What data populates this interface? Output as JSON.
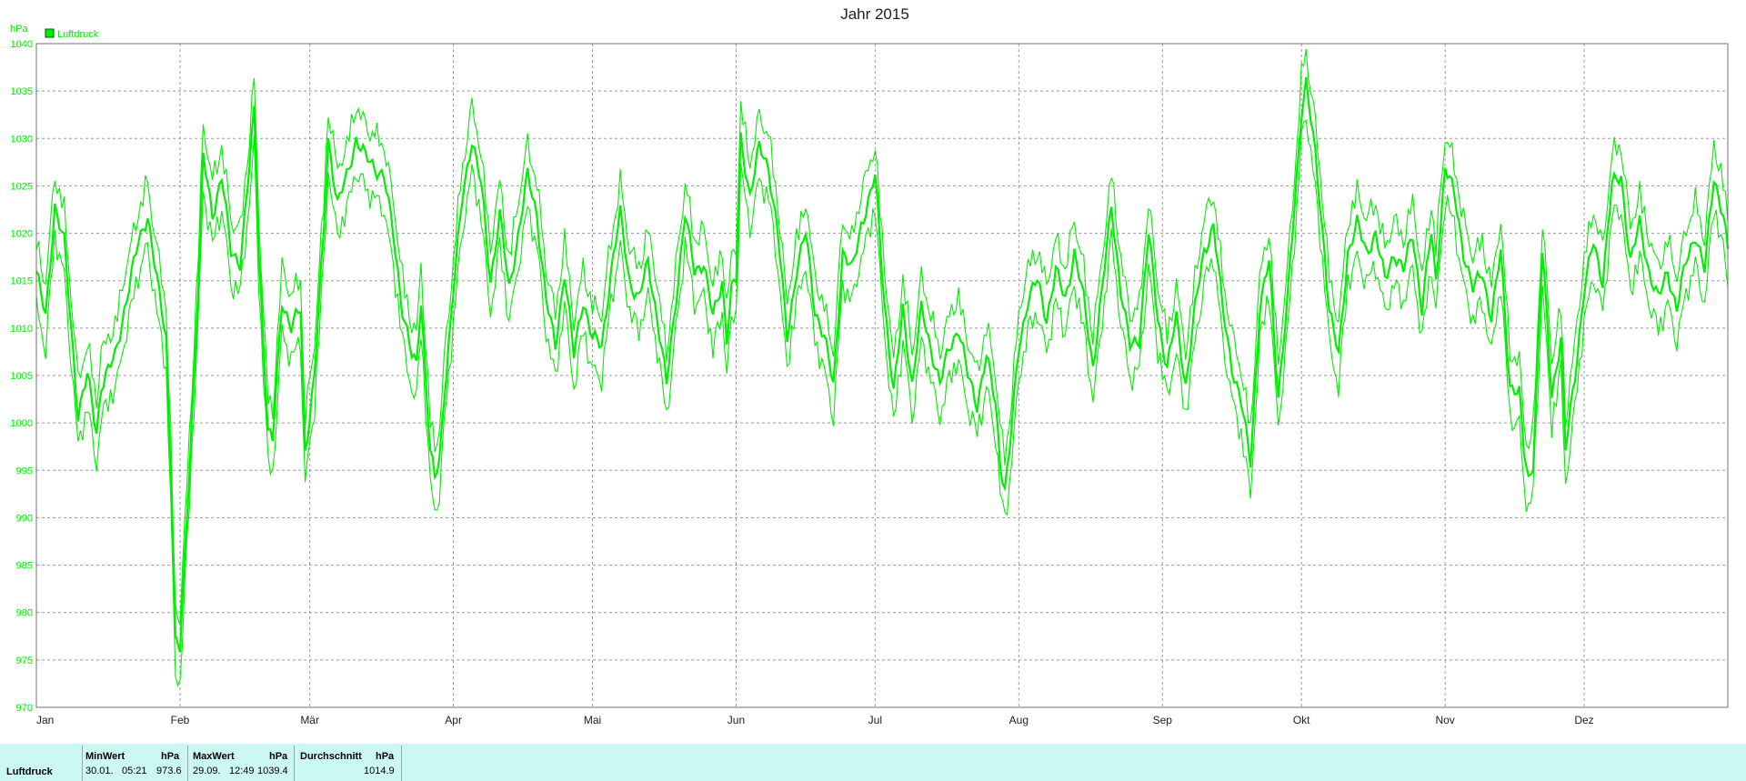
{
  "chart_data": {
    "type": "line",
    "title": "Jahr 2015",
    "y_unit": "hPa",
    "ylim": [
      970,
      1040
    ],
    "y_ticks": [
      970,
      975,
      980,
      985,
      990,
      995,
      1000,
      1005,
      1010,
      1015,
      1020,
      1025,
      1030,
      1035,
      1040
    ],
    "xlim": [
      0,
      365
    ],
    "x_ticks": [
      {
        "label": "Jan",
        "day": 0
      },
      {
        "label": "Feb",
        "day": 31
      },
      {
        "label": "Mär",
        "day": 59
      },
      {
        "label": "Apr",
        "day": 90
      },
      {
        "label": "Mai",
        "day": 120
      },
      {
        "label": "Jun",
        "day": 151
      },
      {
        "label": "Jul",
        "day": 181
      },
      {
        "label": "Aug",
        "day": 212
      },
      {
        "label": "Sep",
        "day": 243
      },
      {
        "label": "Okt",
        "day": 273
      },
      {
        "label": "Nov",
        "day": 304
      },
      {
        "label": "Dez",
        "day": 334
      }
    ],
    "grid": true,
    "legend": "top-left",
    "legend_label": "Luftdruck",
    "color": "#00ee00",
    "series": [
      {
        "name": "Luftdruck",
        "keypoints": [
          [
            0,
            1016
          ],
          [
            2,
            1011
          ],
          [
            4,
            1023
          ],
          [
            6,
            1019
          ],
          [
            9,
            1001
          ],
          [
            11,
            1005
          ],
          [
            13,
            999
          ],
          [
            14,
            1004
          ],
          [
            17,
            1007
          ],
          [
            19,
            1012
          ],
          [
            22,
            1019
          ],
          [
            24,
            1022
          ],
          [
            26,
            1015
          ],
          [
            28,
            1009
          ],
          [
            29,
            995
          ],
          [
            30,
            977
          ],
          [
            31,
            976
          ],
          [
            33,
            995
          ],
          [
            35,
            1015
          ],
          [
            36,
            1028
          ],
          [
            38,
            1022
          ],
          [
            40,
            1026
          ],
          [
            42,
            1018
          ],
          [
            44,
            1017
          ],
          [
            46,
            1027
          ],
          [
            47,
            1033
          ],
          [
            48,
            1018
          ],
          [
            50,
            999
          ],
          [
            51,
            998
          ],
          [
            53,
            1013
          ],
          [
            55,
            1010
          ],
          [
            57,
            1012
          ],
          [
            58,
            997
          ],
          [
            60,
            1005
          ],
          [
            62,
            1020
          ],
          [
            63,
            1030
          ],
          [
            65,
            1023
          ],
          [
            67,
            1026
          ],
          [
            69,
            1030
          ],
          [
            71,
            1028
          ],
          [
            73,
            1027
          ],
          [
            75,
            1026
          ],
          [
            77,
            1020
          ],
          [
            79,
            1012
          ],
          [
            81,
            1007
          ],
          [
            82,
            1006
          ],
          [
            83,
            1013
          ],
          [
            85,
            997
          ],
          [
            86,
            994
          ],
          [
            87,
            996
          ],
          [
            88,
            1003
          ],
          [
            90,
            1014
          ],
          [
            92,
            1024
          ],
          [
            94,
            1030
          ],
          [
            96,
            1025
          ],
          [
            98,
            1015
          ],
          [
            100,
            1022
          ],
          [
            102,
            1014
          ],
          [
            104,
            1020
          ],
          [
            106,
            1026
          ],
          [
            108,
            1022
          ],
          [
            110,
            1013
          ],
          [
            112,
            1008
          ],
          [
            114,
            1016
          ],
          [
            116,
            1007
          ],
          [
            118,
            1013
          ],
          [
            120,
            1009
          ],
          [
            122,
            1008
          ],
          [
            124,
            1016
          ],
          [
            126,
            1022
          ],
          [
            128,
            1015
          ],
          [
            130,
            1013
          ],
          [
            132,
            1017
          ],
          [
            134,
            1011
          ],
          [
            136,
            1004
          ],
          [
            138,
            1013
          ],
          [
            140,
            1022
          ],
          [
            142,
            1016
          ],
          [
            144,
            1017
          ],
          [
            146,
            1011
          ],
          [
            148,
            1015
          ],
          [
            149,
            1009
          ],
          [
            150,
            1014
          ],
          [
            151,
            1015
          ],
          [
            152,
            1030
          ],
          [
            154,
            1024
          ],
          [
            156,
            1029
          ],
          [
            158,
            1027
          ],
          [
            160,
            1020
          ],
          [
            162,
            1009
          ],
          [
            164,
            1016
          ],
          [
            166,
            1020
          ],
          [
            168,
            1012
          ],
          [
            170,
            1009
          ],
          [
            172,
            1004
          ],
          [
            174,
            1018
          ],
          [
            176,
            1016
          ],
          [
            178,
            1021
          ],
          [
            180,
            1024
          ],
          [
            181,
            1026
          ],
          [
            183,
            1013
          ],
          [
            185,
            1003
          ],
          [
            187,
            1012
          ],
          [
            189,
            1004
          ],
          [
            191,
            1012
          ],
          [
            193,
            1008
          ],
          [
            195,
            1004
          ],
          [
            197,
            1008
          ],
          [
            199,
            1010
          ],
          [
            201,
            1005
          ],
          [
            203,
            1002
          ],
          [
            205,
            1007
          ],
          [
            207,
            1002
          ],
          [
            208,
            996
          ],
          [
            209,
            993
          ],
          [
            210,
            997
          ],
          [
            212,
            1008
          ],
          [
            214,
            1013
          ],
          [
            216,
            1015
          ],
          [
            218,
            1011
          ],
          [
            220,
            1016
          ],
          [
            222,
            1013
          ],
          [
            224,
            1018
          ],
          [
            226,
            1013
          ],
          [
            228,
            1006
          ],
          [
            230,
            1014
          ],
          [
            232,
            1023
          ],
          [
            234,
            1014
          ],
          [
            236,
            1008
          ],
          [
            238,
            1009
          ],
          [
            240,
            1020
          ],
          [
            242,
            1011
          ],
          [
            244,
            1006
          ],
          [
            246,
            1011
          ],
          [
            248,
            1004
          ],
          [
            250,
            1012
          ],
          [
            252,
            1018
          ],
          [
            254,
            1021
          ],
          [
            256,
            1012
          ],
          [
            258,
            1006
          ],
          [
            260,
            1002
          ],
          [
            262,
            996
          ],
          [
            264,
            1012
          ],
          [
            266,
            1017
          ],
          [
            268,
            1003
          ],
          [
            270,
            1013
          ],
          [
            272,
            1026
          ],
          [
            273,
            1033
          ],
          [
            274,
            1036
          ],
          [
            276,
            1028
          ],
          [
            278,
            1018
          ],
          [
            279,
            1012
          ],
          [
            281,
            1007
          ],
          [
            283,
            1018
          ],
          [
            285,
            1021
          ],
          [
            287,
            1018
          ],
          [
            289,
            1020
          ],
          [
            291,
            1015
          ],
          [
            293,
            1018
          ],
          [
            295,
            1016
          ],
          [
            297,
            1020
          ],
          [
            299,
            1012
          ],
          [
            301,
            1020
          ],
          [
            302,
            1015
          ],
          [
            304,
            1027
          ],
          [
            306,
            1024
          ],
          [
            308,
            1018
          ],
          [
            310,
            1014
          ],
          [
            312,
            1016
          ],
          [
            314,
            1011
          ],
          [
            316,
            1018
          ],
          [
            317,
            1011
          ],
          [
            318,
            1004
          ],
          [
            320,
            1003
          ],
          [
            321,
            997
          ],
          [
            322,
            994
          ],
          [
            323,
            996
          ],
          [
            325,
            1018
          ],
          [
            327,
            1003
          ],
          [
            329,
            1009
          ],
          [
            330,
            997
          ],
          [
            332,
            1005
          ],
          [
            334,
            1014
          ],
          [
            336,
            1019
          ],
          [
            338,
            1015
          ],
          [
            340,
            1025
          ],
          [
            342,
            1026
          ],
          [
            344,
            1017
          ],
          [
            346,
            1021
          ],
          [
            348,
            1016
          ],
          [
            350,
            1013
          ],
          [
            352,
            1016
          ],
          [
            354,
            1012
          ],
          [
            356,
            1017
          ],
          [
            358,
            1020
          ],
          [
            360,
            1016
          ],
          [
            362,
            1026
          ],
          [
            364,
            1022
          ],
          [
            365,
            1018
          ]
        ]
      }
    ]
  },
  "stats": {
    "row_label": "Luftdruck",
    "min_header": "MinWert",
    "min_unit": "hPa",
    "min_date": "30.01.",
    "min_time": "05:21",
    "min_value": "973.6",
    "max_header": "MaxWert",
    "max_unit": "hPa",
    "max_date": "29.09.",
    "max_time": "12:49",
    "max_value": "1039.4",
    "avg_header": "Durchschnitt",
    "avg_unit": "hPa",
    "avg_value": "1014.9"
  }
}
